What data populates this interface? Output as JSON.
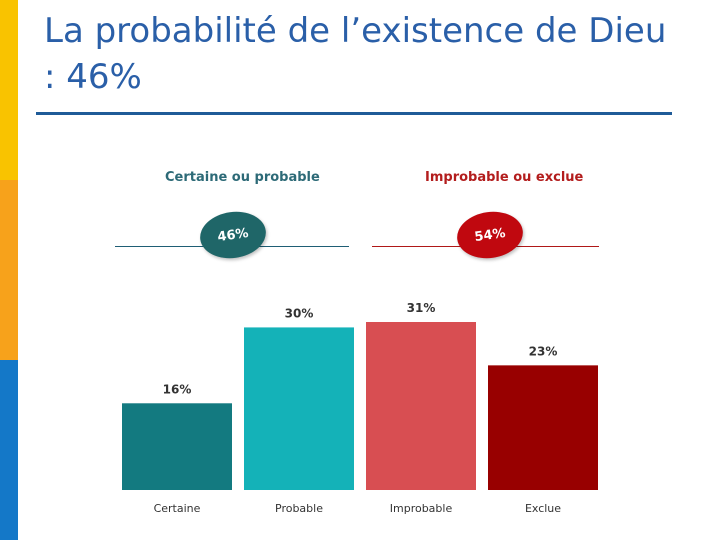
{
  "slide": {
    "title": "La probabilité de l’existence de Dieu : 46%"
  },
  "groups": [
    {
      "label": "Certaine ou probable",
      "value_label": "46%",
      "value": 46,
      "color": "#1f6668"
    },
    {
      "label": "Improbable ou exclue",
      "value_label": "54%",
      "value": 54,
      "color": "#c0080f"
    }
  ],
  "chart_data": {
    "type": "bar",
    "categories": [
      "Certaine",
      "Probable",
      "Improbable",
      "Exclue"
    ],
    "values": [
      16,
      30,
      31,
      23
    ],
    "value_labels": [
      "16%",
      "30%",
      "31%",
      "23%"
    ],
    "colors": [
      "#137a80",
      "#14b2b8",
      "#d84e52",
      "#980000"
    ],
    "ylim": [
      0,
      31
    ],
    "grid": false
  }
}
